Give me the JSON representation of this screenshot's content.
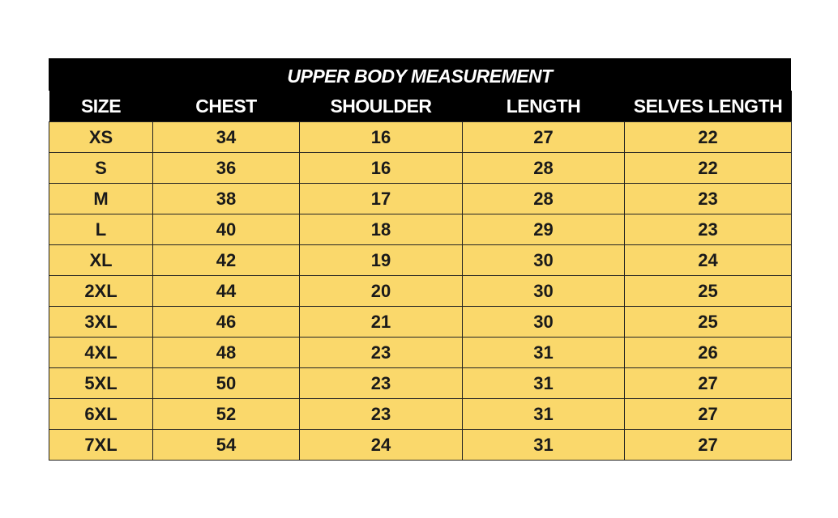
{
  "title": "UPPER BODY MEASUREMENT",
  "colors": {
    "header_bg": "#000000",
    "header_text": "#FFFFFF",
    "cell_bg": "#FAD86B"
  },
  "columns": [
    "SIZE",
    "CHEST",
    "SHOULDER",
    "LENGTH",
    "SELVES LENGTH"
  ],
  "rows": [
    [
      "XS",
      "34",
      "16",
      "27",
      "22"
    ],
    [
      "S",
      "36",
      "16",
      "28",
      "22"
    ],
    [
      "M",
      "38",
      "17",
      "28",
      "23"
    ],
    [
      "L",
      "40",
      "18",
      "29",
      "23"
    ],
    [
      "XL",
      "42",
      "19",
      "30",
      "24"
    ],
    [
      "2XL",
      "44",
      "20",
      "30",
      "25"
    ],
    [
      "3XL",
      "46",
      "21",
      "30",
      "25"
    ],
    [
      "4XL",
      "48",
      "23",
      "31",
      "26"
    ],
    [
      "5XL",
      "50",
      "23",
      "31",
      "27"
    ],
    [
      "6XL",
      "52",
      "23",
      "31",
      "27"
    ],
    [
      "7XL",
      "54",
      "24",
      "31",
      "27"
    ]
  ]
}
